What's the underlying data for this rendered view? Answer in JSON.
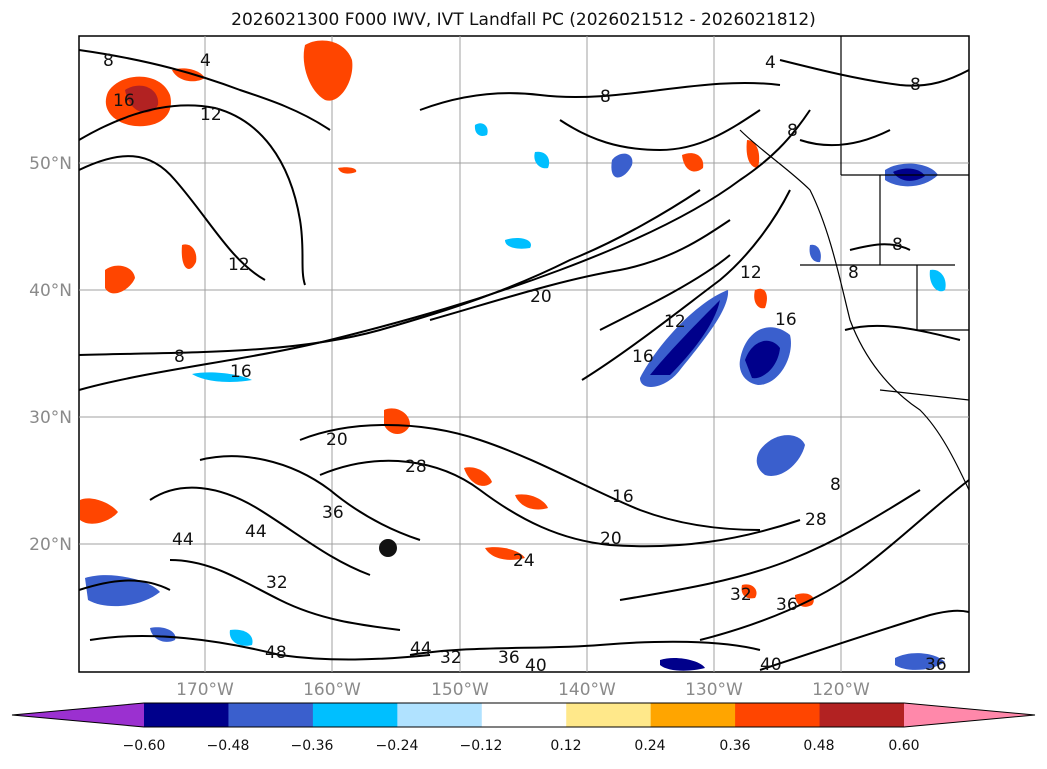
{
  "title": "2026021300 F000 IWV, IVT Landfall PC (2026021512 - 2026021812)",
  "lat_labels": [
    "50°N",
    "40°N",
    "30°N",
    "20°N"
  ],
  "lon_labels": [
    "170°W",
    "160°W",
    "150°W",
    "140°W",
    "130°W",
    "120°W"
  ],
  "contour_labels": [
    "8",
    "4",
    "16",
    "12",
    "8",
    "8",
    "12",
    "20",
    "12",
    "16",
    "16",
    "8",
    "16",
    "20",
    "28",
    "36",
    "44",
    "44",
    "32",
    "20",
    "24",
    "16",
    "48",
    "44",
    "32",
    "36",
    "40",
    "32",
    "36",
    "40",
    "28",
    "8",
    "4",
    "8",
    "8",
    "12",
    "8",
    "36"
  ],
  "colorbar": {
    "ticks": [
      "−0.60",
      "−0.48",
      "−0.36",
      "−0.24",
      "−0.12",
      "0.12",
      "0.24",
      "0.36",
      "0.48",
      "0.60"
    ],
    "colors": [
      "#9b30d0",
      "#00008b",
      "#3a5fcd",
      "#00bfff",
      "#b0e2ff",
      "#ffffff",
      "#ffe88a",
      "#ffa500",
      "#ff4500",
      "#b22222",
      "#ff88aa"
    ]
  },
  "colors": {
    "contour": "#000000",
    "grid": "#a0a0a0",
    "land_border": "#000000"
  }
}
